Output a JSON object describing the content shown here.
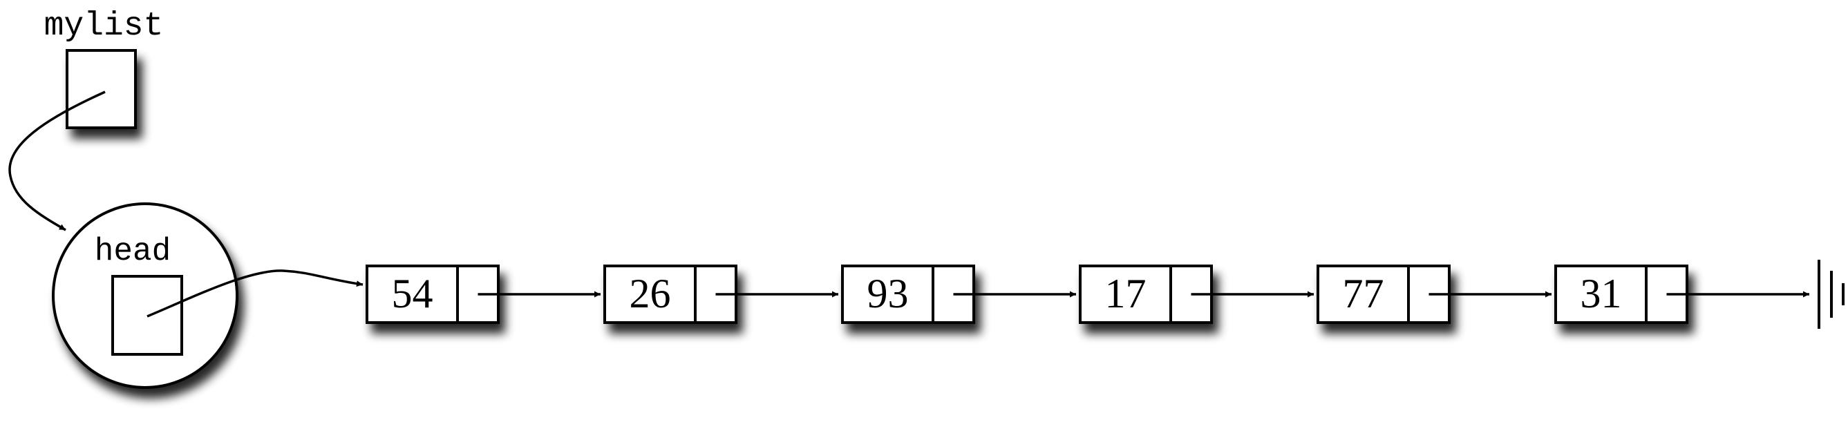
{
  "variable": {
    "name": "mylist"
  },
  "head_object": {
    "field_name": "head"
  },
  "nodes": [
    {
      "value": "54"
    },
    {
      "value": "26"
    },
    {
      "value": "93"
    },
    {
      "value": "17"
    },
    {
      "value": "77"
    },
    {
      "value": "31"
    }
  ],
  "terminator": {
    "symbol": "ground"
  },
  "colors": {
    "stroke": "#000000",
    "fill": "#ffffff",
    "shadow": "#000000"
  }
}
